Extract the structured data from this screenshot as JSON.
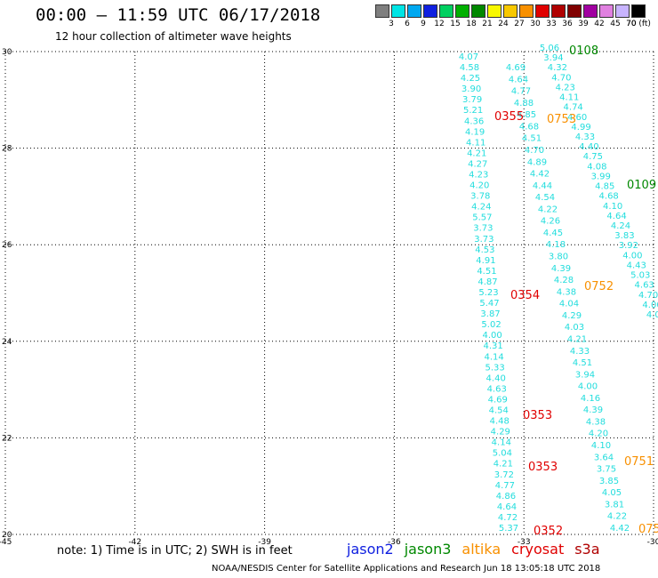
{
  "header": {
    "title": "00:00 – 11:59 UTC 06/17/2018",
    "subtitle": "12 hour collection of altimeter wave heights"
  },
  "legend": {
    "unit": "(ft)",
    "bins": [
      {
        "label": "3",
        "color": "#7f7f7f"
      },
      {
        "label": "6",
        "color": "#00e5e5"
      },
      {
        "label": "9",
        "color": "#00a8f0"
      },
      {
        "label": "12",
        "color": "#1020e0"
      },
      {
        "label": "15",
        "color": "#00d060"
      },
      {
        "label": "18",
        "color": "#00b000"
      },
      {
        "label": "21",
        "color": "#008800"
      },
      {
        "label": "24",
        "color": "#f8f800"
      },
      {
        "label": "27",
        "color": "#f8c800"
      },
      {
        "label": "30",
        "color": "#f89000"
      },
      {
        "label": "33",
        "color": "#e00000"
      },
      {
        "label": "36",
        "color": "#b00000"
      },
      {
        "label": "39",
        "color": "#800000"
      },
      {
        "label": "42",
        "color": "#a000a0"
      },
      {
        "label": "45",
        "color": "#e080e0"
      },
      {
        "label": "70",
        "color": "#c8b4ff"
      },
      {
        "label": "",
        "color": "#000000"
      }
    ]
  },
  "map": {
    "lon_ticks": [
      "-45",
      "-42",
      "-39",
      "-36",
      "-33",
      "-30"
    ],
    "lat_ticks": [
      "30",
      "28",
      "26",
      "24",
      "22",
      "20"
    ],
    "tracks": [
      {
        "id": "A",
        "values": [
          "4.07",
          "4.58",
          "4.25",
          "3.90",
          "3.79",
          "5.21",
          "4.36",
          "4.19",
          "4.11",
          "4.21",
          "4.27",
          "4.23",
          "4.20",
          "3.78",
          "4.24",
          "5.57",
          "3.73",
          "3.73",
          "4.53",
          "4.91",
          "4.51",
          "4.87",
          "5.23",
          "5.47",
          "3.87",
          "5.02",
          "4.00",
          "4.31",
          "4.14",
          "5.33",
          "4.40",
          "4.63",
          "4.69",
          "4.54",
          "4.48",
          "4.29",
          "4.14",
          "5.04",
          "4.21",
          "3.72",
          "4.77",
          "4.86",
          "4.64",
          "4.72",
          "5.37"
        ]
      },
      {
        "id": "B",
        "values": [
          "4.69",
          "4.64",
          "4.77",
          "4.88",
          "4.85",
          "4.68",
          "4.51",
          "4.70",
          "4.89",
          "4.42",
          "4.44",
          "4.54",
          "4.22",
          "4.26",
          "4.45",
          "4.18",
          "3.80",
          "4.39",
          "4.28",
          "4.38",
          "4.04",
          "4.29",
          "4.03",
          "4.21",
          "4.33",
          "4.51",
          "3.94",
          "4.00",
          "4.16",
          "4.39",
          "4.38",
          "4.20",
          "4.10",
          "3.64",
          "3.75",
          "3.85",
          "4.05",
          "3.81",
          "4.22",
          "4.42"
        ]
      },
      {
        "id": "C",
        "values": [
          "5.06",
          "3.94",
          "4.32",
          "4.70",
          "4.23",
          "4.11",
          "4.74",
          "4.60",
          "4.99",
          "4.33",
          "4.40",
          "4.75",
          "4.08",
          "3.99",
          "4.85",
          "4.68",
          "4.10",
          "4.64",
          "4.24",
          "3.83",
          "3.92",
          "4.00",
          "4.43",
          "5.03",
          "4.63",
          "4.70",
          "4.00",
          "4.00"
        ]
      }
    ],
    "time_labels": [
      {
        "text": "0108",
        "color": "#008800"
      },
      {
        "text": "0355",
        "color": "#e00000"
      },
      {
        "text": "0753",
        "color": "#f89000"
      },
      {
        "text": "0109",
        "color": "#008800"
      },
      {
        "text": "0354",
        "color": "#e00000"
      },
      {
        "text": "0752",
        "color": "#f89000"
      },
      {
        "text": "0353",
        "color": "#e00000"
      },
      {
        "text": "0353",
        "color": "#e00000"
      },
      {
        "text": "0751",
        "color": "#f89000"
      },
      {
        "text": "0352",
        "color": "#e00000"
      },
      {
        "text": "075",
        "color": "#f89000"
      }
    ]
  },
  "footer": {
    "note": "note: 1) Time is in UTC; 2) SWH is in feet",
    "satellites": [
      {
        "name": "jason2",
        "color": "#1020e0"
      },
      {
        "name": "jason3",
        "color": "#008800"
      },
      {
        "name": "altika",
        "color": "#f89000"
      },
      {
        "name": "cryosat",
        "color": "#e00000"
      },
      {
        "name": "s3a",
        "color": "#b00000"
      }
    ],
    "credit": "NOAA/NESDIS Center for Satellite Applications and Research    Jun 18 13:05:18 UTC 2018"
  }
}
